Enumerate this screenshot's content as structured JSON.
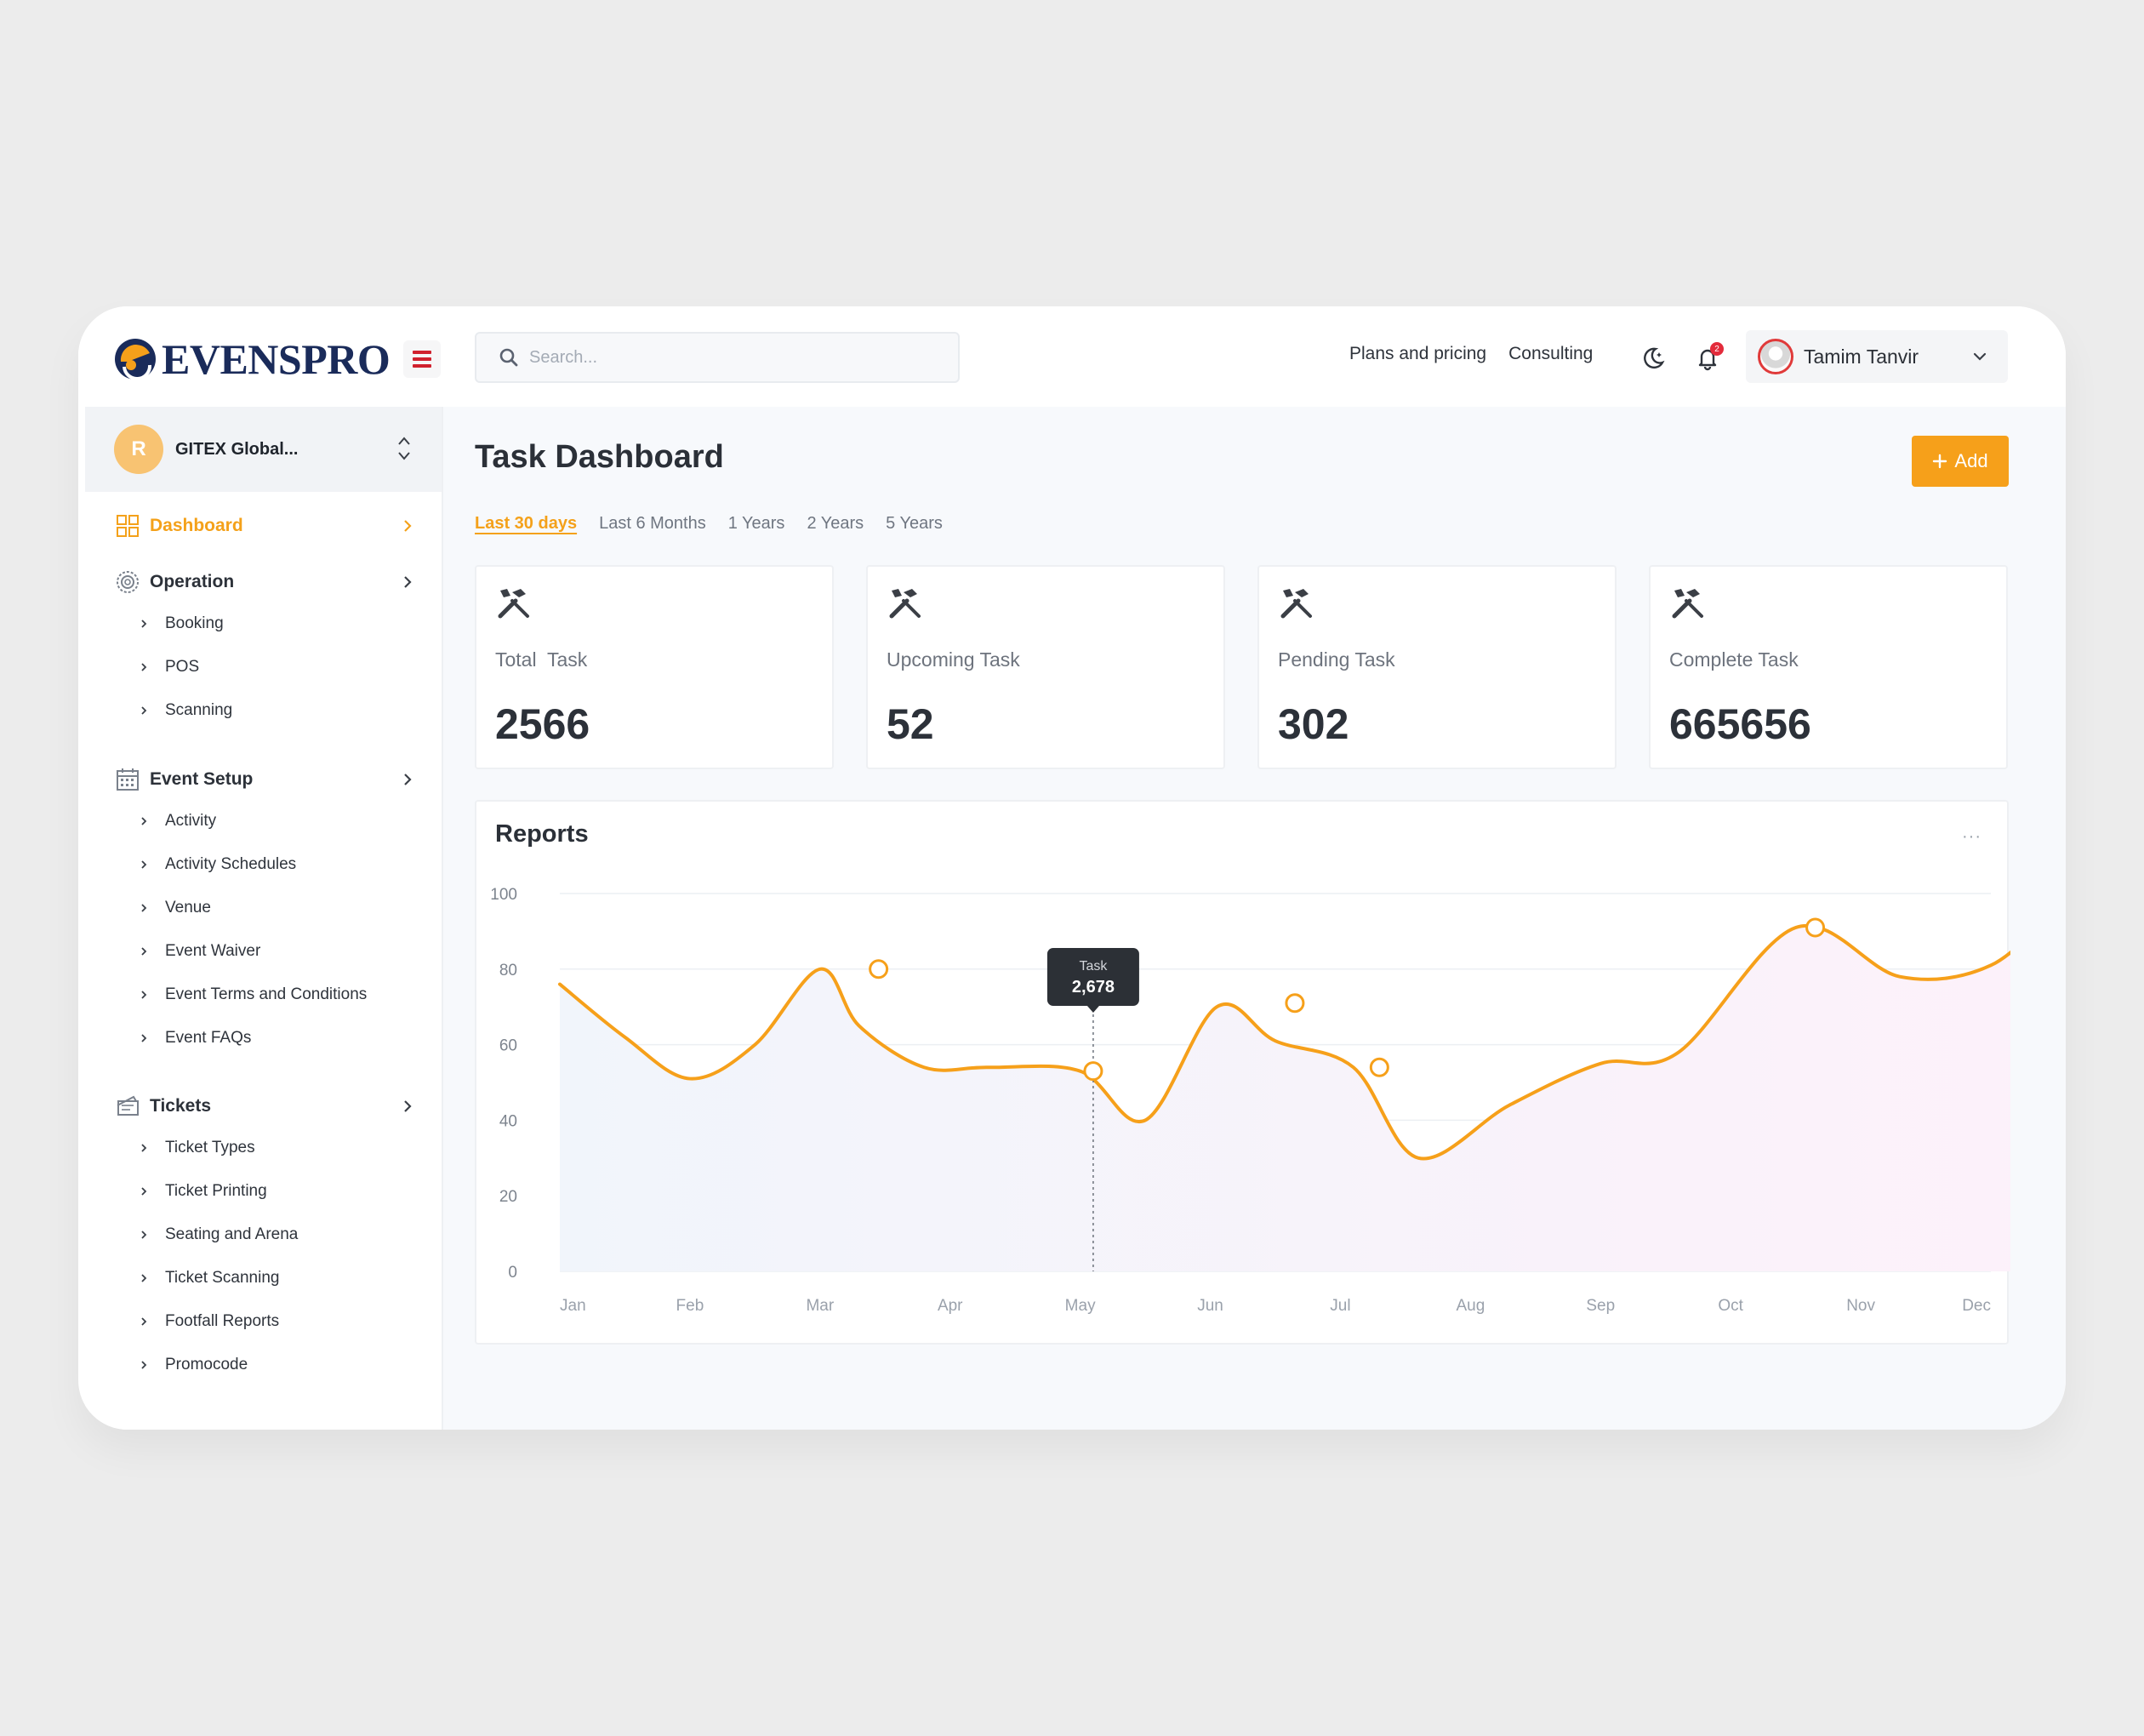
{
  "brand": {
    "name": "EVENSPRO"
  },
  "search": {
    "placeholder": "Search..."
  },
  "header": {
    "links": [
      "Plans and pricing",
      "Consulting"
    ],
    "notification_count": "2",
    "user_name": "Tamim Tanvir"
  },
  "org": {
    "initial": "R",
    "name": "GITEX Global..."
  },
  "sidebar": {
    "dashboard": "Dashboard",
    "operation": {
      "label": "Operation",
      "items": [
        "Booking",
        "POS",
        "Scanning"
      ]
    },
    "event_setup": {
      "label": "Event Setup",
      "items": [
        "Activity",
        "Activity Schedules",
        "Venue",
        "Event Waiver",
        "Event Terms and Conditions",
        "Event FAQs"
      ]
    },
    "tickets": {
      "label": "Tickets",
      "items": [
        "Ticket Types",
        "Ticket Printing",
        "Seating and Arena",
        "Ticket Scanning",
        "Footfall Reports",
        "Promocode"
      ]
    }
  },
  "main": {
    "title": "Task Dashboard",
    "add_label": "Add",
    "tabs": [
      "Last 30 days",
      "Last 6 Months",
      "1 Years",
      "2 Years",
      "5 Years"
    ],
    "active_tab": "Last 30 days",
    "stats": [
      {
        "label": "Total  Task",
        "value": "2566"
      },
      {
        "label": "Upcoming Task",
        "value": "52"
      },
      {
        "label": "Pending Task",
        "value": "302"
      },
      {
        "label": "Complete Task",
        "value": "665656"
      }
    ],
    "reports_title": "Reports",
    "more_label": "···"
  },
  "colors": {
    "accent": "#f6a01a",
    "brand_dark": "#1a2b5a",
    "badge": "#e32b3b"
  },
  "chart_data": {
    "type": "line",
    "categories": [
      "Jan",
      "Feb",
      "Mar",
      "Apr",
      "May",
      "Jun",
      "Jul",
      "Aug",
      "Sep",
      "Oct",
      "Nov",
      "Dec"
    ],
    "x": [
      0,
      0.5,
      1,
      1.5,
      2,
      2.3,
      2.8,
      3.3,
      4,
      4.5,
      5.05,
      5.5,
      6.1,
      6.6,
      7.3,
      8,
      8.6,
      9.5,
      10.3,
      11,
      11.55
    ],
    "y": [
      76,
      62,
      51,
      60,
      80,
      65,
      54,
      54,
      53,
      40,
      70,
      61,
      54,
      30,
      44,
      55,
      58,
      91,
      78,
      81,
      98
    ],
    "markers": [
      [
        2.45,
        80
      ],
      [
        4.1,
        53
      ],
      [
        5.65,
        71
      ],
      [
        6.3,
        54
      ],
      [
        9.65,
        91
      ]
    ],
    "tooltip": {
      "label": "Task",
      "value": "2,678",
      "x": 4.1
    },
    "ylim": [
      0,
      100
    ],
    "yticks": [
      0,
      20,
      40,
      60,
      80,
      100
    ],
    "grid": true
  }
}
